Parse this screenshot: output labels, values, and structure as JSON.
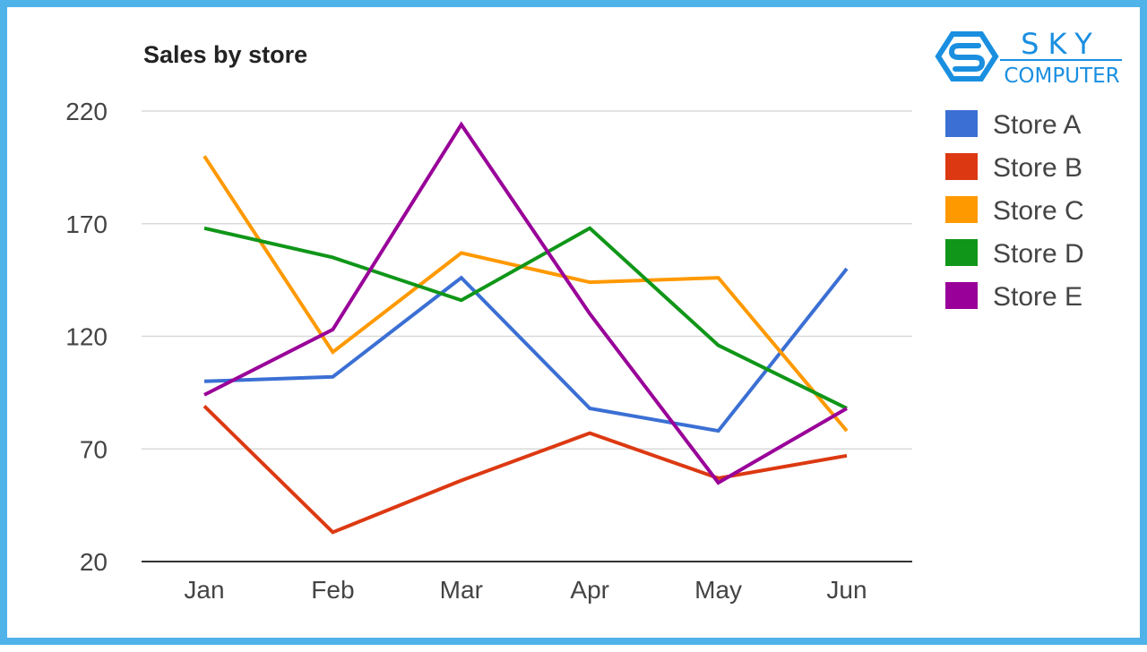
{
  "colors": {
    "frame": "#4fb3ea",
    "grid": "#d9d9d9",
    "axis": "#333333",
    "logo": "#1a8fe0"
  },
  "logo": {
    "line1": "SKY",
    "line2": "COMPUTER",
    "icon": "s-hex-logo-icon"
  },
  "chart_data": {
    "type": "line",
    "title": "Sales by store",
    "xlabel": "",
    "ylabel": "",
    "categories": [
      "Jan",
      "Feb",
      "Mar",
      "Apr",
      "May",
      "Jun"
    ],
    "ylim": [
      20,
      220
    ],
    "yticks": [
      20,
      70,
      120,
      170,
      220
    ],
    "grid": true,
    "legend_position": "right",
    "series": [
      {
        "name": "Store A",
        "color": "#3b6fd4",
        "values": [
          100,
          102,
          146,
          88,
          78,
          150
        ]
      },
      {
        "name": "Store B",
        "color": "#dc3912",
        "values": [
          89,
          33,
          56,
          77,
          57,
          67
        ]
      },
      {
        "name": "Store C",
        "color": "#ff9900",
        "values": [
          200,
          113,
          157,
          144,
          146,
          78
        ]
      },
      {
        "name": "Store D",
        "color": "#109618",
        "values": [
          168,
          155,
          136,
          168,
          116,
          88
        ]
      },
      {
        "name": "Store E",
        "color": "#990099",
        "values": [
          94,
          123,
          214,
          130,
          55,
          88
        ]
      }
    ]
  }
}
